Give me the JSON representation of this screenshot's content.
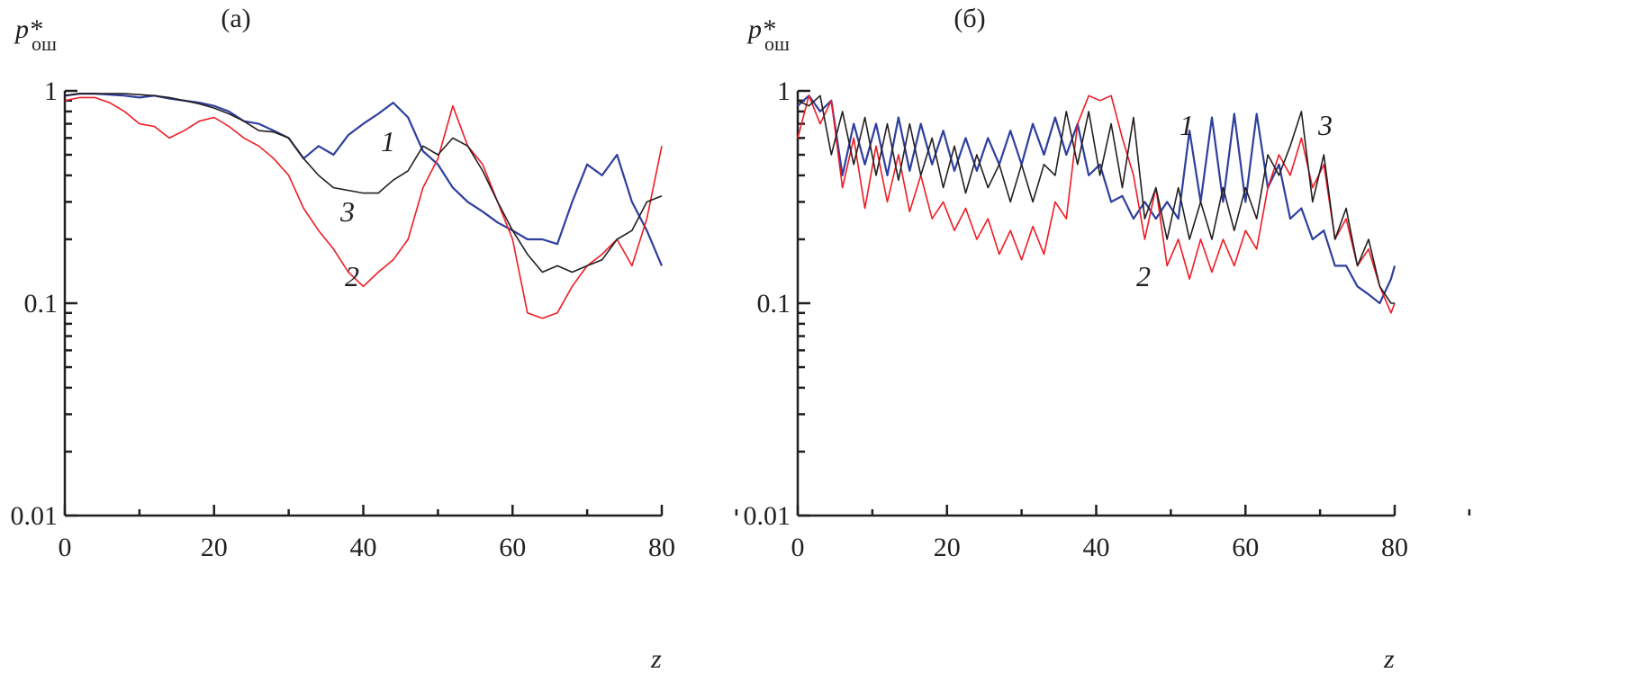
{
  "chart_data": [
    {
      "type": "line",
      "title": "(а)",
      "ylabel": "p*",
      "ylabel_subscript": "ош",
      "xlabel": "z",
      "xlim": [
        0,
        80
      ],
      "ylim": [
        0.01,
        1
      ],
      "yscale": "log",
      "grid": false,
      "xticks": [
        "0",
        "20",
        "40",
        "60",
        "80"
      ],
      "yticks": [
        "0.01",
        "0.1",
        "1"
      ],
      "x": [
        0,
        2,
        4,
        6,
        8,
        10,
        12,
        14,
        16,
        18,
        20,
        22,
        24,
        26,
        28,
        30,
        32,
        34,
        36,
        38,
        40,
        42,
        44,
        46,
        48,
        50,
        52,
        54,
        56,
        58,
        60,
        62,
        64,
        66,
        68,
        70,
        72,
        74,
        76,
        78,
        80
      ],
      "series": [
        {
          "label": "1",
          "color": "#2e3f9e",
          "values": [
            0.95,
            0.97,
            0.97,
            0.96,
            0.95,
            0.93,
            0.95,
            0.92,
            0.9,
            0.88,
            0.85,
            0.8,
            0.72,
            0.7,
            0.65,
            0.6,
            0.48,
            0.55,
            0.5,
            0.62,
            0.7,
            0.78,
            0.88,
            0.75,
            0.52,
            0.45,
            0.35,
            0.3,
            0.27,
            0.24,
            0.22,
            0.2,
            0.2,
            0.19,
            0.3,
            0.45,
            0.4,
            0.5,
            0.3,
            0.22,
            0.15
          ]
        },
        {
          "label": "2",
          "color": "#ee1c25",
          "values": [
            0.9,
            0.93,
            0.93,
            0.88,
            0.8,
            0.7,
            0.68,
            0.6,
            0.65,
            0.72,
            0.75,
            0.68,
            0.6,
            0.55,
            0.48,
            0.4,
            0.28,
            0.22,
            0.18,
            0.14,
            0.12,
            0.14,
            0.16,
            0.2,
            0.35,
            0.48,
            0.85,
            0.55,
            0.45,
            0.3,
            0.2,
            0.09,
            0.085,
            0.09,
            0.12,
            0.15,
            0.17,
            0.2,
            0.15,
            0.25,
            0.55
          ]
        },
        {
          "label": "3",
          "color": "#231f20",
          "values": [
            0.95,
            0.97,
            0.97,
            0.97,
            0.97,
            0.96,
            0.95,
            0.93,
            0.9,
            0.87,
            0.83,
            0.78,
            0.72,
            0.65,
            0.64,
            0.6,
            0.48,
            0.4,
            0.35,
            0.34,
            0.33,
            0.33,
            0.38,
            0.42,
            0.55,
            0.5,
            0.6,
            0.55,
            0.42,
            0.3,
            0.22,
            0.17,
            0.14,
            0.15,
            0.14,
            0.15,
            0.16,
            0.2,
            0.22,
            0.3,
            0.32
          ]
        }
      ]
    },
    {
      "type": "line",
      "title": "(б)",
      "ylabel": "p*",
      "ylabel_subscript": "ош",
      "xlabel": "z",
      "xlim": [
        0,
        80
      ],
      "ylim": [
        0.01,
        1
      ],
      "yscale": "log",
      "grid": false,
      "xticks": [
        "0",
        "20",
        "40",
        "60",
        "80"
      ],
      "yticks": [
        "0.01",
        "0.1",
        "1"
      ],
      "x": [
        0,
        1.5,
        3,
        4.5,
        6,
        7.5,
        9,
        10.5,
        12,
        13.5,
        15,
        16.5,
        18,
        19.5,
        21,
        22.5,
        24,
        25.5,
        27,
        28.5,
        30,
        31.5,
        33,
        34.5,
        36,
        37.5,
        39,
        40.5,
        42,
        43.5,
        45,
        46.5,
        48,
        49.5,
        51,
        52.5,
        54,
        55.5,
        57,
        58.5,
        60,
        61.5,
        63,
        64.5,
        66,
        67.5,
        69,
        70.5,
        72,
        73.5,
        75,
        76.5,
        78,
        79.5,
        80
      ],
      "series": [
        {
          "label": "1",
          "color": "#2e3f9e",
          "values": [
            0.85,
            0.95,
            0.8,
            0.9,
            0.4,
            0.7,
            0.45,
            0.7,
            0.4,
            0.75,
            0.42,
            0.7,
            0.45,
            0.65,
            0.42,
            0.6,
            0.42,
            0.6,
            0.45,
            0.65,
            0.45,
            0.7,
            0.5,
            0.75,
            0.5,
            0.7,
            0.4,
            0.45,
            0.3,
            0.32,
            0.25,
            0.3,
            0.25,
            0.3,
            0.25,
            0.65,
            0.3,
            0.75,
            0.3,
            0.78,
            0.3,
            0.78,
            0.35,
            0.45,
            0.25,
            0.28,
            0.2,
            0.22,
            0.15,
            0.15,
            0.12,
            0.11,
            0.1,
            0.13,
            0.15
          ]
        },
        {
          "label": "2",
          "color": "#ee1c25",
          "values": [
            0.6,
            0.95,
            0.7,
            0.9,
            0.35,
            0.6,
            0.28,
            0.55,
            0.3,
            0.5,
            0.27,
            0.4,
            0.25,
            0.3,
            0.22,
            0.28,
            0.2,
            0.25,
            0.17,
            0.22,
            0.16,
            0.23,
            0.17,
            0.3,
            0.25,
            0.7,
            0.95,
            0.9,
            0.95,
            0.6,
            0.4,
            0.2,
            0.35,
            0.15,
            0.2,
            0.13,
            0.2,
            0.14,
            0.2,
            0.15,
            0.22,
            0.18,
            0.35,
            0.5,
            0.4,
            0.6,
            0.35,
            0.45,
            0.2,
            0.25,
            0.15,
            0.18,
            0.12,
            0.09,
            0.1
          ]
        },
        {
          "label": "3",
          "color": "#231f20",
          "values": [
            0.9,
            0.85,
            0.95,
            0.5,
            0.8,
            0.45,
            0.75,
            0.4,
            0.7,
            0.38,
            0.7,
            0.4,
            0.6,
            0.35,
            0.55,
            0.33,
            0.5,
            0.35,
            0.45,
            0.3,
            0.45,
            0.3,
            0.45,
            0.4,
            0.8,
            0.45,
            0.8,
            0.4,
            0.7,
            0.35,
            0.75,
            0.25,
            0.35,
            0.2,
            0.35,
            0.2,
            0.3,
            0.2,
            0.35,
            0.22,
            0.35,
            0.25,
            0.5,
            0.4,
            0.55,
            0.8,
            0.3,
            0.5,
            0.2,
            0.28,
            0.15,
            0.2,
            0.12,
            0.1,
            0.1
          ]
        }
      ]
    }
  ]
}
